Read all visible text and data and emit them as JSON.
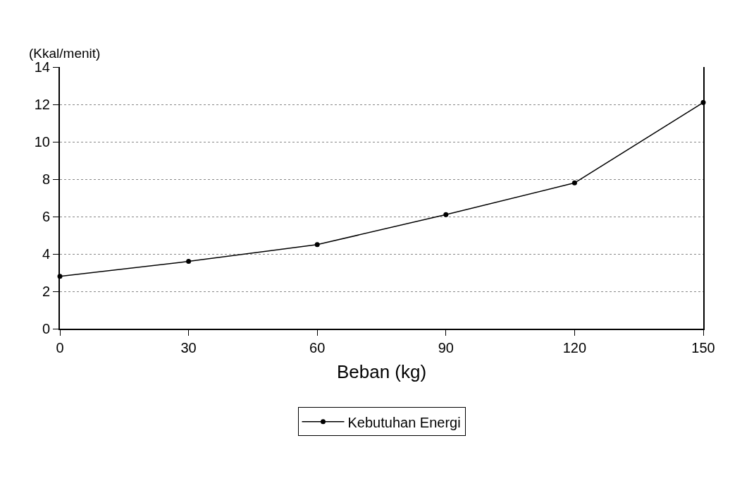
{
  "chart_data": {
    "type": "line",
    "xlabel": "Beban (kg)",
    "ylabel": "(Kkal/menit)",
    "x": [
      0,
      30,
      60,
      90,
      120,
      150
    ],
    "series": [
      {
        "name": "Kebutuhan Energi",
        "color": "#000000",
        "values": [
          2.8,
          3.6,
          4.5,
          6.1,
          7.8,
          12.1
        ]
      }
    ],
    "xlim": [
      0,
      150
    ],
    "xticks": [
      0,
      30,
      60,
      90,
      120,
      150
    ],
    "ylim": [
      0,
      14
    ],
    "yticks": [
      0,
      2,
      4,
      6,
      8,
      10,
      12,
      14
    ],
    "grid": "y",
    "legend": "bottom",
    "marker": "circle",
    "line_style": "solid"
  }
}
